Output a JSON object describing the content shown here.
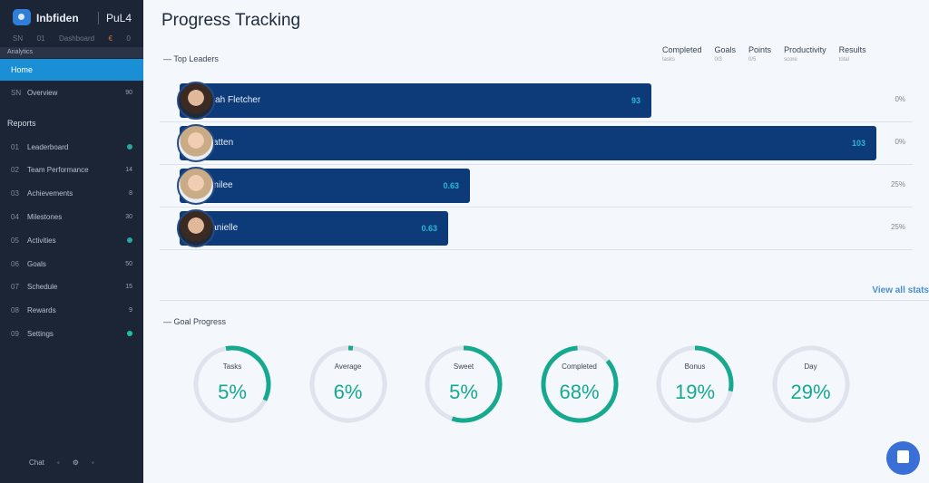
{
  "sidebar": {
    "brand": "Inbfiden",
    "brand2": "PuL4",
    "sub": [
      "SN",
      "01",
      "Dashboard",
      "€",
      "0"
    ],
    "section": "Analytics",
    "active": "Home",
    "second": {
      "icon": "SN",
      "label": "Overview",
      "badge": "90"
    },
    "group": "Reports",
    "items": [
      {
        "icon": "01",
        "label": "Leaderboard",
        "badge": "dot"
      },
      {
        "icon": "02",
        "label": "Team Performance",
        "badge": "14"
      },
      {
        "icon": "03",
        "label": "Achievements",
        "badge": "8"
      },
      {
        "icon": "04",
        "label": "Milestones",
        "badge": "30"
      },
      {
        "icon": "05",
        "label": "Activities",
        "badge": "dot"
      },
      {
        "icon": "06",
        "label": "Goals",
        "badge": "50"
      },
      {
        "icon": "07",
        "label": "Schedule",
        "badge": "15"
      },
      {
        "icon": "08",
        "label": "Rewards",
        "badge": "9"
      },
      {
        "icon": "09",
        "label": "Settings",
        "badge": "dot-green"
      }
    ],
    "footer": [
      "Chat",
      "◦",
      "⚙",
      "◦"
    ]
  },
  "main": {
    "title": "Progress Tracking",
    "leaders_title": "Top Leaders",
    "columns": [
      {
        "h": "Completed",
        "s": "tasks"
      },
      {
        "h": "Goals",
        "s": "0/3"
      },
      {
        "h": "Points",
        "s": "0/5"
      },
      {
        "h": "Productivity",
        "s": "score"
      },
      {
        "h": "Results",
        "s": "total"
      }
    ],
    "leaders": [
      {
        "name": "Leah Fletcher",
        "value": "93",
        "progress": 0.65,
        "right": "0%",
        "light": false
      },
      {
        "name": "Platten",
        "value": "103",
        "progress": 0.96,
        "right": "0%",
        "light": true
      },
      {
        "name": "Emilee",
        "value": "0.63",
        "progress": 0.4,
        "right": "25%",
        "light": true
      },
      {
        "name": "Danielle",
        "value": "0.63",
        "progress": 0.37,
        "right": "25%",
        "light": false
      }
    ],
    "link": "View all stats",
    "goals_title": "Goal Progress",
    "goals": [
      {
        "label": "Tasks",
        "pct": "5%",
        "arc": 0.35
      },
      {
        "label": "Average",
        "pct": "6%",
        "arc": 0.02
      },
      {
        "label": "Sweet",
        "pct": "5%",
        "arc": 0.55
      },
      {
        "label": "Completed",
        "pct": "68%",
        "arc": 0.85
      },
      {
        "label": "Bonus",
        "pct": "19%",
        "arc": 0.28
      },
      {
        "label": "Day",
        "pct": "29%",
        "arc": 0
      }
    ]
  },
  "colors": {
    "accent": "#1a8fd6",
    "bar": "#0d3b7a",
    "ring": "#16a98f"
  }
}
